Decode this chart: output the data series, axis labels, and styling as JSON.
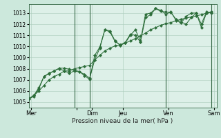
{
  "title": "",
  "xlabel": "Pression niveau de la mer( hPa )",
  "bg_color": "#cce8dc",
  "plot_bg": "#ddf0e8",
  "grid_color": "#aaccbb",
  "line_color": "#2d6e3a",
  "vline_color": "#336644",
  "ylim": [
    1004.5,
    1013.8
  ],
  "yticks": [
    1005,
    1006,
    1007,
    1008,
    1009,
    1010,
    1011,
    1012,
    1013
  ],
  "xlim": [
    0,
    37
  ],
  "day_tick_pos": [
    0.5,
    9.5,
    12.5,
    18.5,
    27.5,
    36.5
  ],
  "day_labels": [
    "Mer",
    "",
    "Dim",
    "Jeu",
    "Ven",
    "Sam"
  ],
  "vline_pos": [
    9,
    12,
    27,
    36
  ],
  "s1x": [
    0,
    1,
    2,
    3,
    4,
    5,
    6,
    7,
    8,
    9,
    10,
    11,
    12,
    13,
    14,
    15,
    16,
    17,
    18,
    19,
    20,
    21,
    22,
    23,
    24,
    25,
    26,
    27,
    28,
    29,
    30,
    31,
    32,
    33,
    34,
    35,
    36
  ],
  "s1y": [
    1005.3,
    1005.6,
    1006.0,
    1006.5,
    1007.0,
    1007.3,
    1007.5,
    1007.8,
    1007.8,
    1008.0,
    1008.1,
    1008.2,
    1008.3,
    1008.8,
    1009.2,
    1009.6,
    1009.85,
    1010.05,
    1010.15,
    1010.3,
    1010.5,
    1010.7,
    1010.95,
    1011.2,
    1011.5,
    1011.7,
    1011.9,
    1012.05,
    1012.15,
    1012.3,
    1012.45,
    1012.55,
    1012.65,
    1012.75,
    1012.85,
    1013.0,
    1013.1
  ],
  "s2x": [
    0,
    1,
    2,
    3,
    4,
    5,
    6,
    7,
    8,
    9,
    10,
    11,
    12,
    13,
    14,
    15,
    16,
    17,
    18,
    19,
    20,
    21,
    22,
    23,
    24,
    25,
    26,
    27,
    28,
    29,
    30,
    31,
    32,
    33,
    34,
    35,
    36
  ],
  "s2y": [
    1005.3,
    1005.5,
    1006.2,
    1007.3,
    1007.55,
    1007.8,
    1008.0,
    1007.8,
    1007.6,
    1007.8,
    1007.7,
    1007.5,
    1007.15,
    1008.8,
    1009.85,
    1011.5,
    1011.4,
    1010.5,
    1010.1,
    1010.3,
    1011.0,
    1011.5,
    1010.5,
    1012.9,
    1013.0,
    1013.4,
    1013.25,
    1012.9,
    1013.1,
    1012.35,
    1012.1,
    1012.7,
    1013.0,
    1013.0,
    1011.7,
    1013.0,
    1013.1
  ],
  "s3x": [
    0,
    1,
    2,
    3,
    4,
    5,
    6,
    7,
    8,
    9,
    10,
    11,
    12,
    13,
    14,
    15,
    16,
    17,
    18,
    19,
    20,
    21,
    22,
    23,
    24,
    25,
    26,
    27,
    28,
    29,
    30,
    31,
    32,
    33,
    34,
    35,
    36
  ],
  "s3y": [
    1005.3,
    1005.6,
    1006.3,
    1007.3,
    1007.6,
    1007.8,
    1008.05,
    1008.05,
    1007.95,
    1007.85,
    1007.75,
    1007.35,
    1007.05,
    1009.2,
    1009.95,
    1011.5,
    1011.3,
    1010.45,
    1010.15,
    1010.35,
    1011.1,
    1011.0,
    1010.4,
    1012.6,
    1012.85,
    1013.4,
    1013.15,
    1013.1,
    1013.05,
    1012.45,
    1012.2,
    1012.0,
    1012.6,
    1013.0,
    1012.0,
    1013.1,
    1013.0
  ]
}
